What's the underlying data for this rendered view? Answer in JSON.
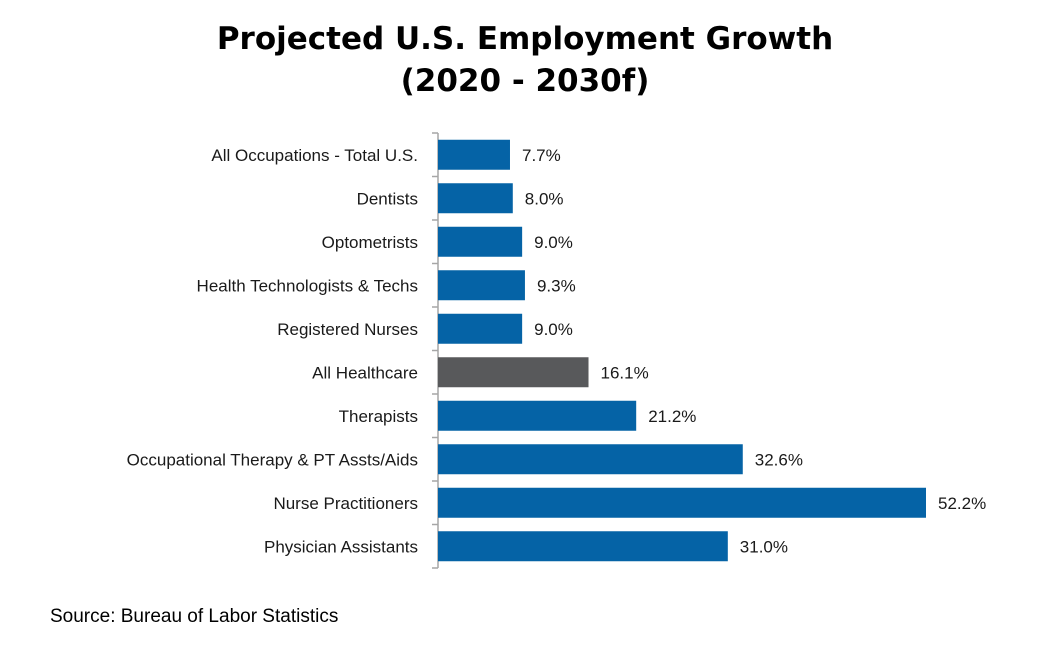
{
  "chart_data": {
    "type": "bar",
    "orientation": "horizontal",
    "title_line1": "Projected U.S. Employment Growth",
    "title_line2": "(2020 - 2030f)",
    "categories": [
      "All Occupations - Total U.S.",
      "Dentists",
      "Optometrists",
      "Health Technologists & Techs",
      "Registered Nurses",
      "All Healthcare",
      "Therapists",
      "Occupational Therapy & PT Assts/Aids",
      "Nurse Practitioners",
      "Physician Assistants"
    ],
    "values": [
      7.7,
      8.0,
      9.0,
      9.3,
      9.0,
      16.1,
      21.2,
      32.6,
      52.2,
      31.0
    ],
    "value_labels": [
      "7.7%",
      "8.0%",
      "9.0%",
      "9.3%",
      "9.0%",
      "16.1%",
      "21.2%",
      "32.6%",
      "52.2%",
      "31.0%"
    ],
    "highlight_index": 5,
    "colors": {
      "default": "#0563A6",
      "highlight": "#58595B",
      "axis": "#A6A6A6"
    },
    "xlim": [
      0,
      52.2
    ],
    "xlabel": "",
    "ylabel": "",
    "grid": false
  },
  "source": "Source: Bureau of Labor Statistics"
}
